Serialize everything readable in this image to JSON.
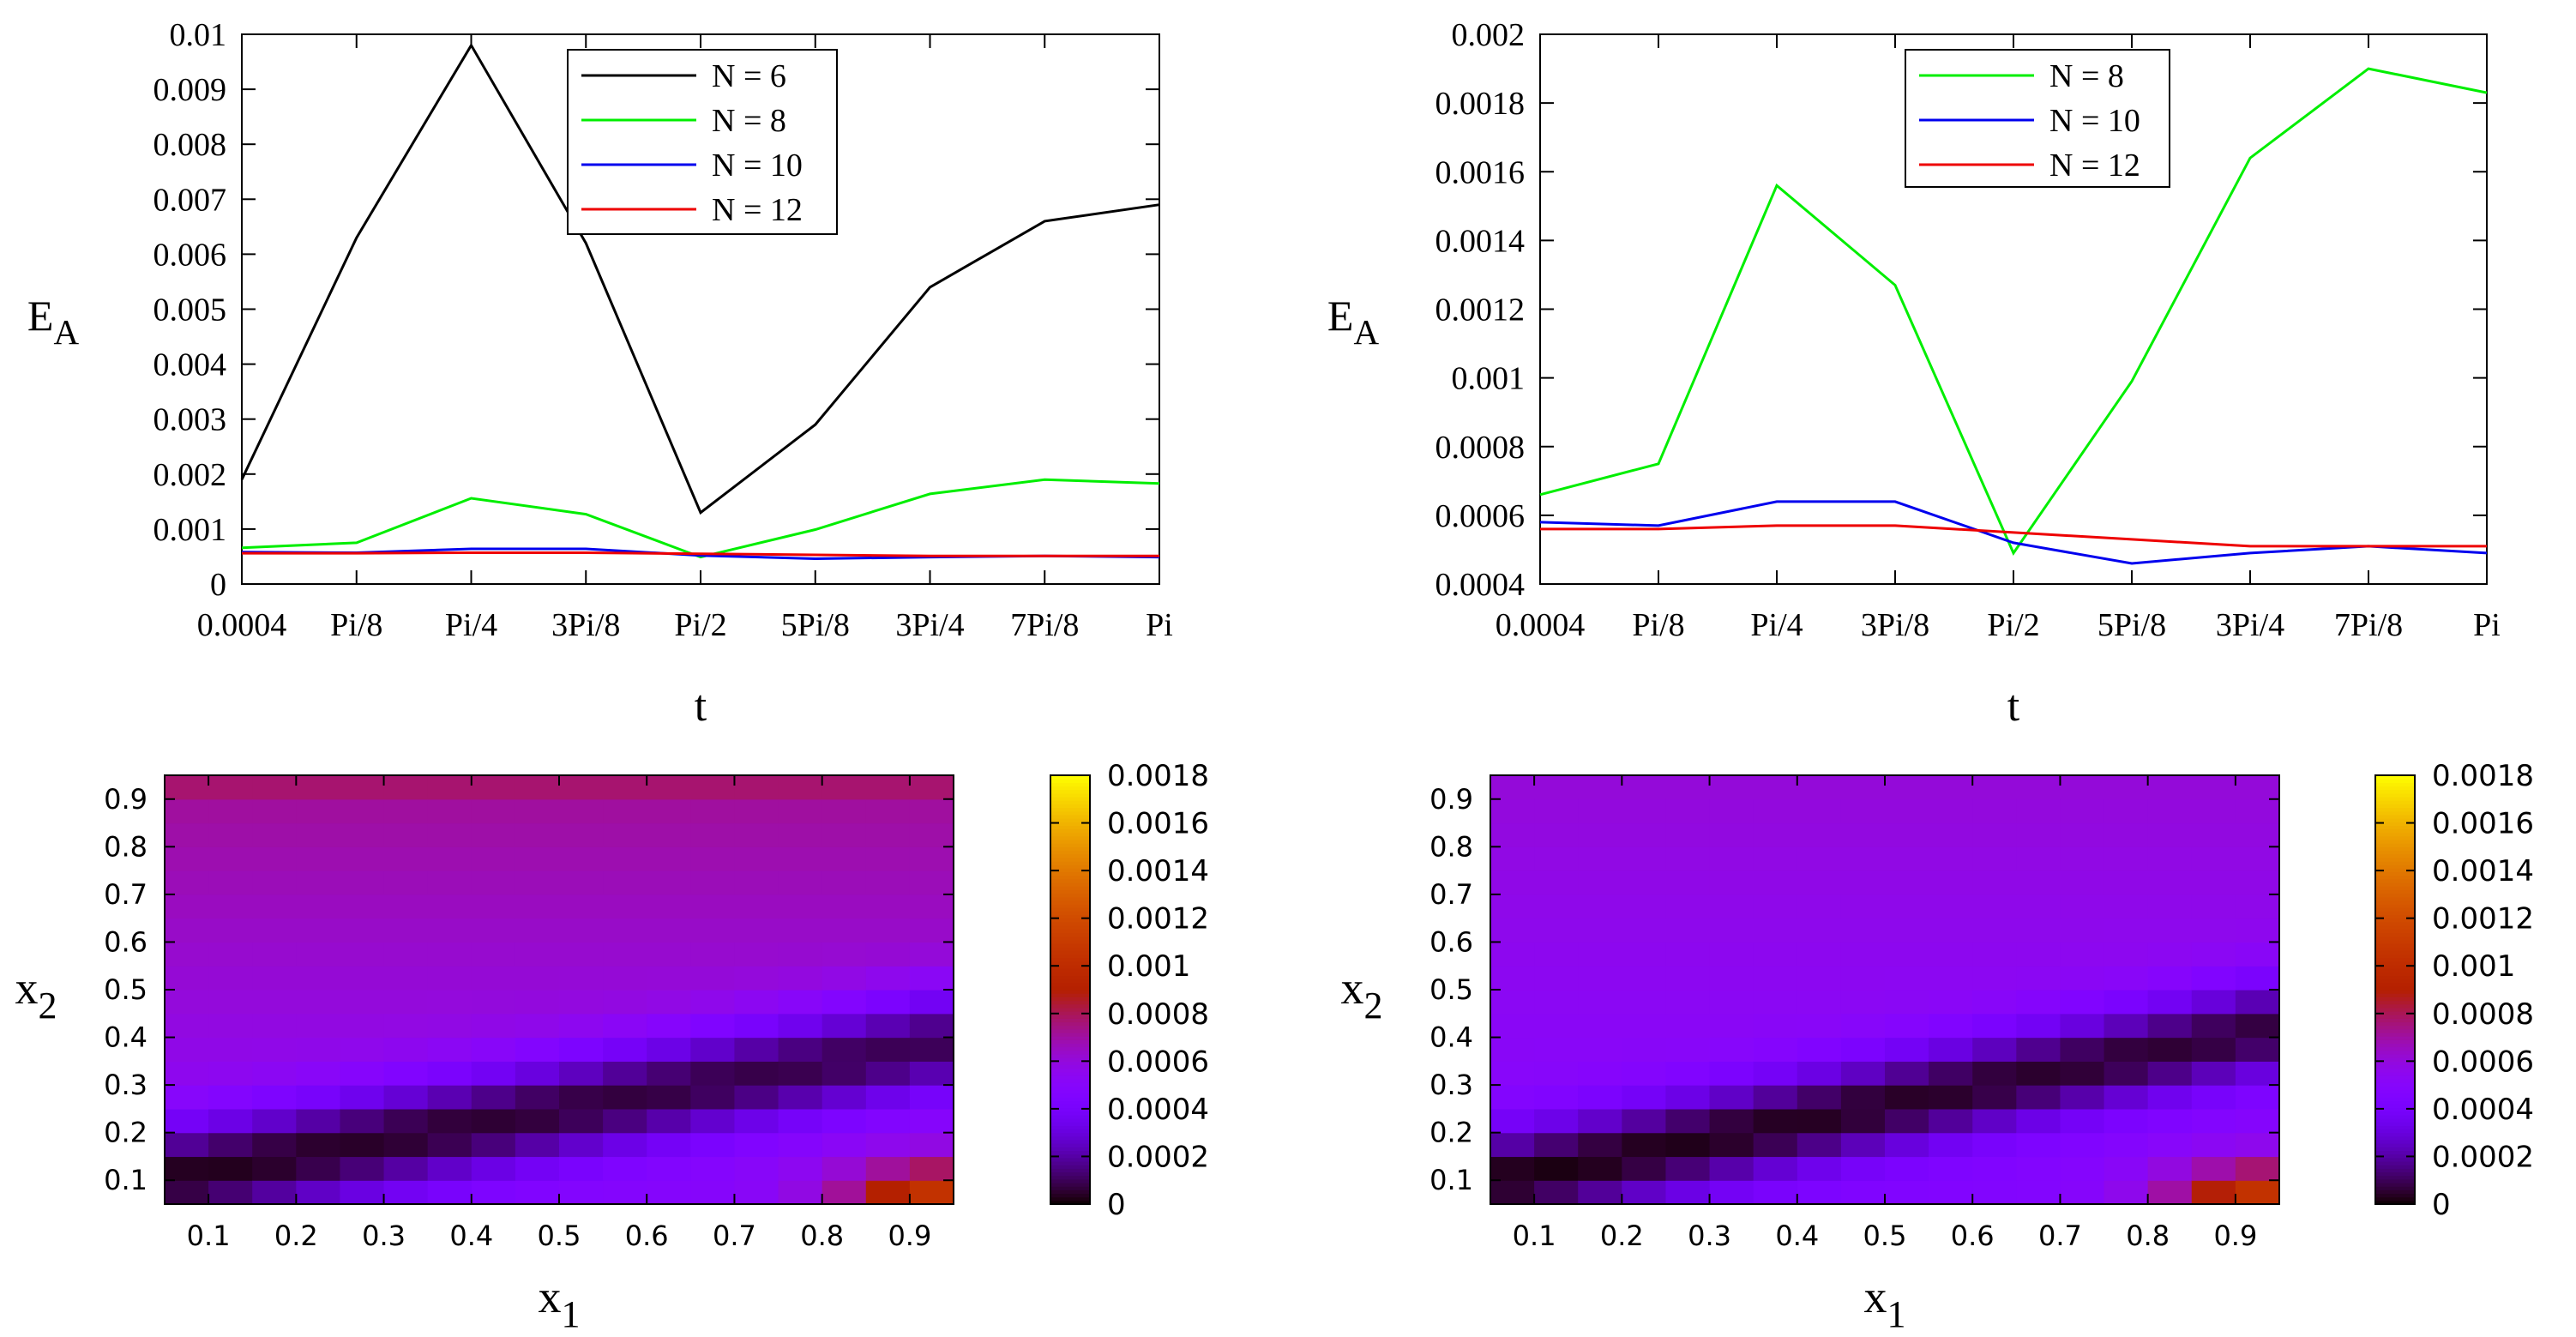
{
  "chart_data": [
    {
      "type": "line",
      "xlabel": "t",
      "ylabel_main": "E",
      "ylabel_sub": "A",
      "categories": [
        "0.0004",
        "Pi/8",
        "Pi/4",
        "3Pi/8",
        "Pi/2",
        "5Pi/8",
        "3Pi/4",
        "7Pi/8",
        "Pi"
      ],
      "ylim": [
        0,
        0.01
      ],
      "yticks": [
        0,
        0.001,
        0.002,
        0.003,
        0.004,
        0.005,
        0.006,
        0.007,
        0.008,
        0.009,
        0.01
      ],
      "ytick_labels": [
        "0",
        "0.001",
        "0.002",
        "0.003",
        "0.004",
        "0.005",
        "0.006",
        "0.007",
        "0.008",
        "0.009",
        "0.01"
      ],
      "legend_position": "top-center",
      "series": [
        {
          "name": "N = 6",
          "color": "#000000",
          "values": [
            0.0019,
            0.0063,
            0.0098,
            0.0062,
            0.0013,
            0.0029,
            0.0054,
            0.0066,
            0.0069
          ]
        },
        {
          "name": "N = 8",
          "color": "#00ee00",
          "values": [
            0.00066,
            0.00075,
            0.00156,
            0.00127,
            0.00049,
            0.00099,
            0.00164,
            0.0019,
            0.00183
          ]
        },
        {
          "name": "N = 10",
          "color": "#0000ee",
          "values": [
            0.00058,
            0.00057,
            0.00064,
            0.00064,
            0.00052,
            0.00046,
            0.00049,
            0.00051,
            0.00049
          ]
        },
        {
          "name": "N = 12",
          "color": "#ee0000",
          "values": [
            0.00056,
            0.00056,
            0.00057,
            0.00057,
            0.00055,
            0.00053,
            0.00051,
            0.00051,
            0.00051
          ]
        }
      ]
    },
    {
      "type": "line",
      "xlabel": "t",
      "ylabel_main": "E",
      "ylabel_sub": "A",
      "categories": [
        "0.0004",
        "Pi/8",
        "Pi/4",
        "3Pi/8",
        "Pi/2",
        "5Pi/8",
        "3Pi/4",
        "7Pi/8",
        "Pi"
      ],
      "ylim": [
        0.0004,
        0.002
      ],
      "yticks": [
        0.0004,
        0.0006,
        0.0008,
        0.001,
        0.0012,
        0.0014,
        0.0016,
        0.0018,
        0.002
      ],
      "ytick_labels": [
        "0.0004",
        "0.0006",
        "0.0008",
        "0.001",
        "0.0012",
        "0.0014",
        "0.0016",
        "0.0018",
        "0.002"
      ],
      "legend_position": "top-center",
      "series": [
        {
          "name": "N = 8",
          "color": "#00ee00",
          "values": [
            0.00066,
            0.00075,
            0.00156,
            0.00127,
            0.00049,
            0.00099,
            0.00164,
            0.0019,
            0.00183
          ]
        },
        {
          "name": "N = 10",
          "color": "#0000ee",
          "values": [
            0.00058,
            0.00057,
            0.00064,
            0.00064,
            0.00052,
            0.00046,
            0.00049,
            0.00051,
            0.00049
          ]
        },
        {
          "name": "N = 12",
          "color": "#ee0000",
          "values": [
            0.00056,
            0.00056,
            0.00057,
            0.00057,
            0.00055,
            0.00053,
            0.00051,
            0.00051,
            0.00051
          ]
        }
      ]
    },
    {
      "type": "heatmap",
      "xlabel_main": "x",
      "xlabel_sub": "1",
      "ylabel_main": "x",
      "ylabel_sub": "2",
      "xlim": [
        0.05,
        0.95
      ],
      "ylim": [
        0.05,
        0.95
      ],
      "xticks": [
        0.1,
        0.2,
        0.3,
        0.4,
        0.5,
        0.6,
        0.7,
        0.8,
        0.9
      ],
      "xtick_labels": [
        "0.1",
        "0.2",
        "0.3",
        "0.4",
        "0.5",
        "0.6",
        "0.7",
        "0.8",
        "0.9"
      ],
      "yticks": [
        0.1,
        0.2,
        0.3,
        0.4,
        0.5,
        0.6,
        0.7,
        0.8,
        0.9
      ],
      "ytick_labels": [
        "0.1",
        "0.2",
        "0.3",
        "0.4",
        "0.5",
        "0.6",
        "0.7",
        "0.8",
        "0.9"
      ],
      "grid_size": [
        18,
        18
      ],
      "colorbar": {
        "range": [
          0,
          0.0018
        ],
        "ticks": [
          0,
          0.0002,
          0.0004,
          0.0006,
          0.0008,
          0.001,
          0.0012,
          0.0014,
          0.0016,
          0.0018
        ],
        "tick_labels": [
          "0",
          "0.0002",
          "0.0004",
          "0.0006",
          "0.0008",
          "0.001",
          "0.0012",
          "0.0014",
          "0.0016",
          "0.0018"
        ]
      },
      "field": {
        "base": 0.00048,
        "slope_y": 0.00026,
        "band_center": 0.09,
        "band_slope": 0.32,
        "band_depth": 0.00048,
        "band_width": 0.075,
        "corner_peak": 0.00062,
        "top_row_extra": 5e-05
      }
    },
    {
      "type": "heatmap",
      "xlabel_main": "x",
      "xlabel_sub": "1",
      "ylabel_main": "x",
      "ylabel_sub": "2",
      "xlim": [
        0.05,
        0.95
      ],
      "ylim": [
        0.05,
        0.95
      ],
      "xticks": [
        0.1,
        0.2,
        0.3,
        0.4,
        0.5,
        0.6,
        0.7,
        0.8,
        0.9
      ],
      "xtick_labels": [
        "0.1",
        "0.2",
        "0.3",
        "0.4",
        "0.5",
        "0.6",
        "0.7",
        "0.8",
        "0.9"
      ],
      "yticks": [
        0.1,
        0.2,
        0.3,
        0.4,
        0.5,
        0.6,
        0.7,
        0.8,
        0.9
      ],
      "ytick_labels": [
        "0.1",
        "0.2",
        "0.3",
        "0.4",
        "0.5",
        "0.6",
        "0.7",
        "0.8",
        "0.9"
      ],
      "grid_size": [
        18,
        18
      ],
      "colorbar": {
        "range": [
          0,
          0.0018
        ],
        "ticks": [
          0,
          0.0002,
          0.0004,
          0.0006,
          0.0008,
          0.001,
          0.0012,
          0.0014,
          0.0016,
          0.0018
        ],
        "tick_labels": [
          "0",
          "0.0002",
          "0.0004",
          "0.0006",
          "0.0008",
          "0.001",
          "0.0012",
          "0.0014",
          "0.0016",
          "0.0018"
        ]
      },
      "field": {
        "base": 0.00046,
        "slope_y": 0.00016,
        "band_center": 0.08,
        "band_slope": 0.36,
        "band_depth": 0.00046,
        "band_width": 0.07,
        "corner_peak": 0.00065,
        "top_row_extra": 0.0
      }
    }
  ]
}
